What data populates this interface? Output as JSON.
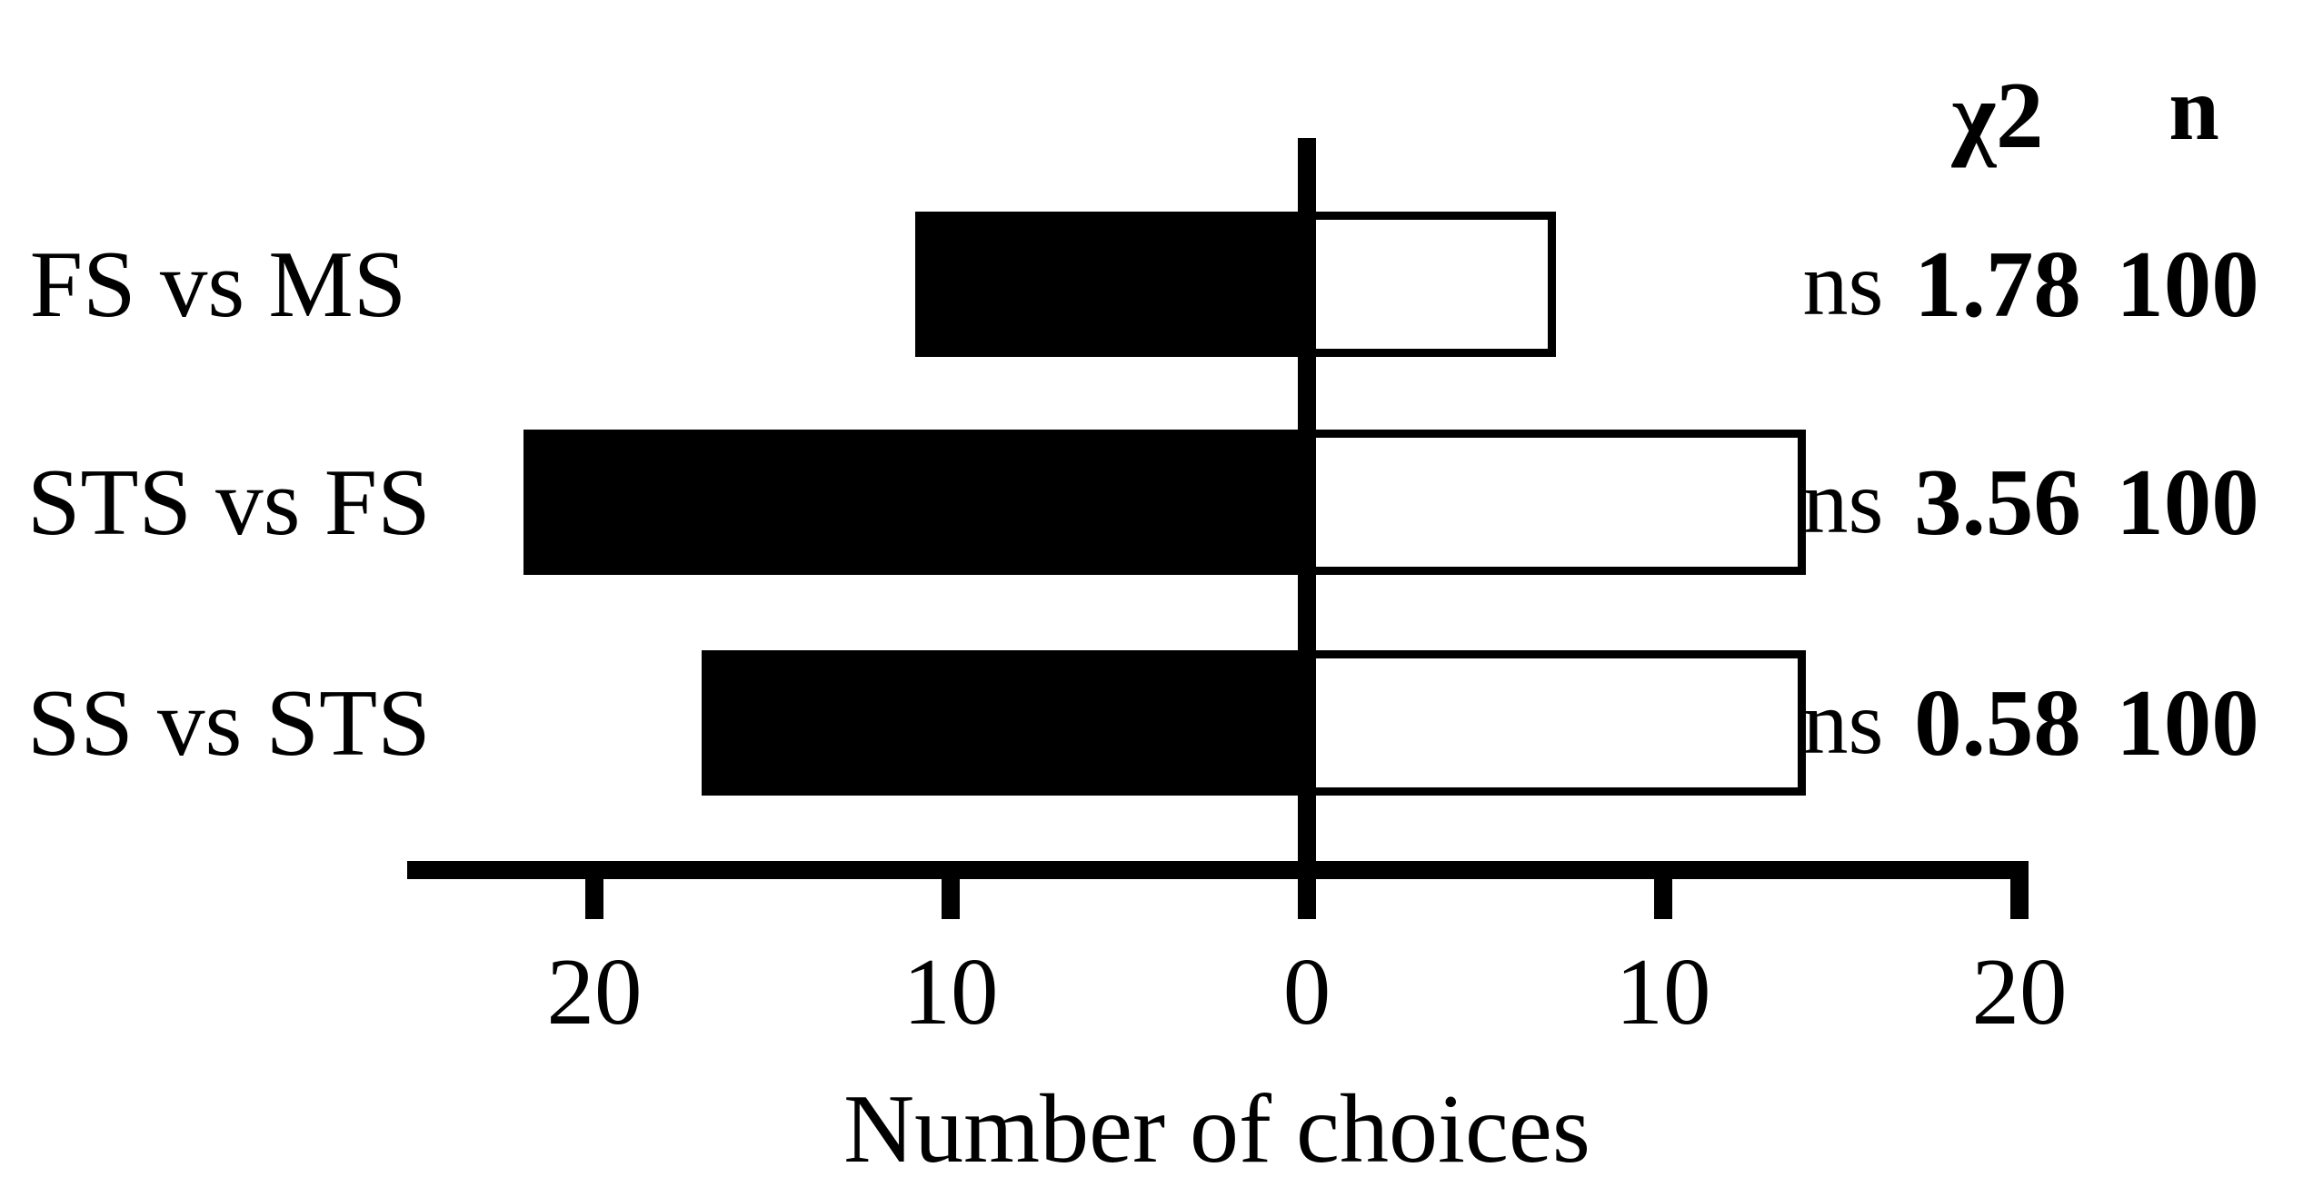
{
  "chart_data": {
    "type": "bar",
    "variant": "horizontal diverging paired-choice bars",
    "title": "",
    "xlabel": "Number of choices",
    "categories": [
      "FS vs MS",
      "STS vs FS",
      "SS vs STS"
    ],
    "series": [
      {
        "name": "left choice (filled black bar)",
        "fill": "#000000",
        "values": [
          11,
          22,
          17
        ]
      },
      {
        "name": "right choice (open white bar)",
        "fill": "#ffffff",
        "values": [
          7,
          14,
          14
        ]
      }
    ],
    "x_ticks": [
      {
        "label": "20",
        "value": -20
      },
      {
        "label": "10",
        "value": -10
      },
      {
        "label": "0",
        "value": 0
      },
      {
        "label": "10",
        "value": 10
      },
      {
        "label": "20",
        "value": 20
      }
    ],
    "x_axis_range": [
      -25.3,
      20.2
    ],
    "grid": false,
    "legend": false,
    "stats_table": {
      "headers": {
        "chi2": "χ2",
        "n": "n"
      },
      "rows": [
        {
          "sig": "ns",
          "chi2": "1.78",
          "n": "100"
        },
        {
          "sig": "ns",
          "chi2": "3.56",
          "n": "100"
        },
        {
          "sig": "ns",
          "chi2": "0.58",
          "n": "100"
        }
      ]
    },
    "colors": {
      "foreground": "#000000",
      "background": "#ffffff"
    }
  }
}
